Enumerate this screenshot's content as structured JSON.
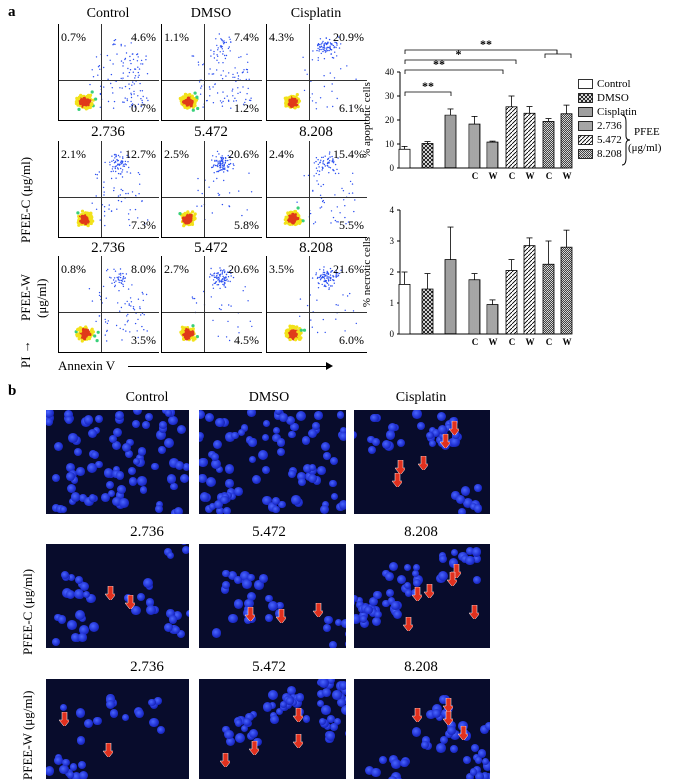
{
  "figure": {
    "panel_a_label": "a",
    "panel_b_label": "b",
    "flow": {
      "columns": [
        "Control",
        "DMSO",
        "Cisplatin"
      ],
      "row_doses": [
        "2.736",
        "5.472",
        "8.208"
      ],
      "row_labels": {
        "pfee_c": "PFEE-C (μg/ml)",
        "pfee_w": "PFEE-W (μg/ml)"
      },
      "axis_y": "PI →",
      "axis_x": "Annexin  V",
      "rows": [
        [
          {
            "ul": "0.7%",
            "ur": "4.6%",
            "lr": "0.7%"
          },
          {
            "ul": "1.1%",
            "ur": "7.4%",
            "lr": "1.2%"
          },
          {
            "ul": "4.3%",
            "ur": "20.9%",
            "lr": "6.1%"
          }
        ],
        [
          {
            "ul": "2.1%",
            "ur": "12.7%",
            "lr": "7.3%"
          },
          {
            "ul": "2.5%",
            "ur": "20.6%",
            "lr": "5.8%"
          },
          {
            "ul": "2.4%",
            "ur": "15.4%",
            "lr": "5.5%"
          }
        ],
        [
          {
            "ul": "0.8%",
            "ur": "8.0%",
            "lr": "3.5%"
          },
          {
            "ul": "2.7%",
            "ur": "20.6%",
            "lr": "4.5%"
          },
          {
            "ul": "3.5%",
            "ur": "21.6%",
            "lr": "6.0%"
          }
        ]
      ]
    },
    "fluorescence": {
      "columns": [
        "Control",
        "DMSO",
        "Cisplatin"
      ],
      "row_doses": [
        "2.736",
        "5.472",
        "8.208"
      ],
      "row_labels": {
        "pfee_c": "PFEE-C (μg/ml)",
        "pfee_w": "PFEE-W (μg/ml)"
      },
      "arrow_color": "#e0301e",
      "cell_color": "#2a3cf0"
    },
    "legend": {
      "items": [
        "Control",
        "DMSO",
        "Cisplatin",
        "2.736",
        "5.472",
        "8.208"
      ],
      "group_label": "PFEE",
      "group_unit": "(μg/ml)"
    }
  },
  "chart_data": [
    {
      "type": "bar",
      "ylabel": "% apoptotic cells",
      "ylim": [
        0,
        40
      ],
      "yticks": [
        "0",
        "10",
        "20",
        "30",
        "40"
      ],
      "categories": [
        "Control",
        "DMSO",
        "Cisplatin",
        "2.736 C",
        "2.736 W",
        "5.472 C",
        "5.472 W",
        "8.208 C",
        "8.208 W"
      ],
      "group_tick_labels": [
        "C",
        "W",
        "C",
        "W",
        "C",
        "W"
      ],
      "values": [
        7.8,
        10.2,
        22.0,
        18.3,
        10.8,
        25.5,
        22.8,
        19.4,
        22.6
      ],
      "errors": [
        1.2,
        0.8,
        2.6,
        3.2,
        0.4,
        4.5,
        2.8,
        1.2,
        3.6
      ],
      "patterns": [
        "plain",
        "cross",
        "hstripe",
        "vstripe",
        "vstripe",
        "diag",
        "diag",
        "dense",
        "dense"
      ],
      "significance": [
        "**",
        "*",
        "**",
        "**"
      ]
    },
    {
      "type": "bar",
      "ylabel": "% necrotic cells",
      "ylim": [
        0,
        4
      ],
      "yticks": [
        "0",
        "1",
        "2",
        "3",
        "4"
      ],
      "categories": [
        "Control",
        "DMSO",
        "Cisplatin",
        "2.736 C",
        "2.736 W",
        "5.472 C",
        "5.472 W",
        "8.208 C",
        "8.208 W"
      ],
      "group_tick_labels": [
        "C",
        "W",
        "C",
        "W",
        "C",
        "W"
      ],
      "values": [
        1.6,
        1.45,
        2.4,
        1.75,
        0.95,
        2.05,
        2.85,
        2.25,
        2.8
      ],
      "errors": [
        0.4,
        0.5,
        1.05,
        0.2,
        0.15,
        0.35,
        0.25,
        0.75,
        0.55
      ],
      "patterns": [
        "plain",
        "cross",
        "hstripe",
        "vstripe",
        "vstripe",
        "diag",
        "diag",
        "dense",
        "dense"
      ]
    }
  ]
}
